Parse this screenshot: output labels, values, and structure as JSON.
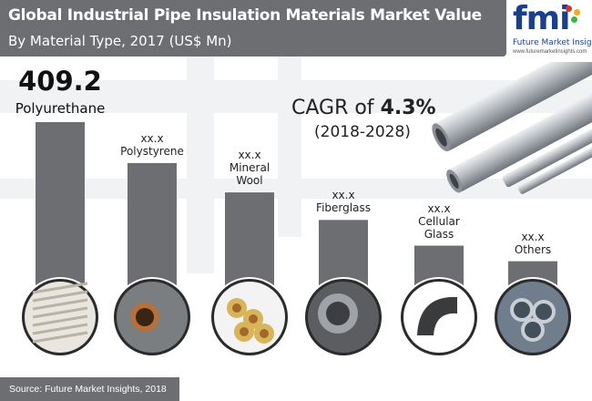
{
  "title": {
    "line1": "Global Industrial Pipe Insulation Materials Market Value",
    "line2": "By Material Type, 2017 (US$ Mn)"
  },
  "logo": {
    "letters": "fmi",
    "name": "Future Market Insights",
    "url": "www.futuremarketinsights.com",
    "colors": [
      "#1b3f8f",
      "#e2332a",
      "#f5a623",
      "#39b54a"
    ]
  },
  "cagr": {
    "label": "CAGR of",
    "value": "4.3%",
    "period": "(2018-2028)"
  },
  "source": "Source: Future Market Insights, 2018",
  "colors": {
    "bar": "#6d6e71",
    "header": "#6d6e71",
    "icon_circle": "#2b2b2b"
  },
  "chart_data": {
    "type": "bar",
    "title": "Global Industrial Pipe Insulation Materials Market Value",
    "subtitle": "By Material Type, 2017 (US$ Mn)",
    "categories": [
      "Polyurethane",
      "Polystyrene",
      "Mineral Wool",
      "Fiberglass",
      "Cellular Glass",
      "Others"
    ],
    "category_labels": [
      [
        "Polyurethane"
      ],
      [
        "Polystyrene"
      ],
      [
        "Mineral",
        "Wool"
      ],
      [
        "Fiberglass"
      ],
      [
        "Cellular",
        "Glass"
      ],
      [
        "Others"
      ]
    ],
    "value_labels": [
      "409.2",
      "xx.x",
      "xx.x",
      "xx.x",
      "xx.x",
      "xx.x"
    ],
    "values": [
      409.2,
      320,
      256,
      196,
      140,
      106
    ],
    "ylim": [
      0,
      409.2
    ],
    "grid": false,
    "legend": "none",
    "icons": [
      "flexible-duct-icon",
      "copper-pipe-foam-icon",
      "mineral-wool-pipes-icon",
      "fiberglass-pipe-icon",
      "cellular-glass-elbow-icon",
      "steel-pipes-icon"
    ]
  }
}
